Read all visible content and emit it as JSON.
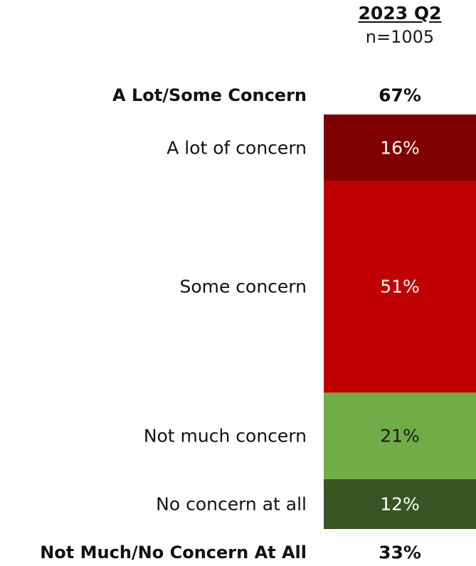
{
  "header": {
    "title": "2023 Q2",
    "n": "n=1005"
  },
  "net_top": {
    "label": "A Lot/Some Concern",
    "value": "67%"
  },
  "net_bottom": {
    "label": "Not Much/No Concern At All",
    "value": "33%"
  },
  "chart_data": {
    "type": "bar",
    "stacked": true,
    "orientation": "vertical",
    "categories": [
      "2023 Q2"
    ],
    "series": [
      {
        "name": "A lot of concern",
        "values": [
          16
        ],
        "color": "#7f0000",
        "label_color": "#ffffff"
      },
      {
        "name": "Some concern",
        "values": [
          51
        ],
        "color": "#c00000",
        "label_color": "#ffffff"
      },
      {
        "name": "Not much concern",
        "values": [
          21
        ],
        "color": "#70ad47",
        "label_color": "#1a1a1a"
      },
      {
        "name": "No concern at all",
        "values": [
          12
        ],
        "color": "#375623",
        "label_color": "#ffffff"
      }
    ],
    "value_labels": [
      "16%",
      "51%",
      "21%",
      "12%"
    ],
    "ylim": [
      0,
      100
    ],
    "grid": false,
    "legend": "left"
  }
}
